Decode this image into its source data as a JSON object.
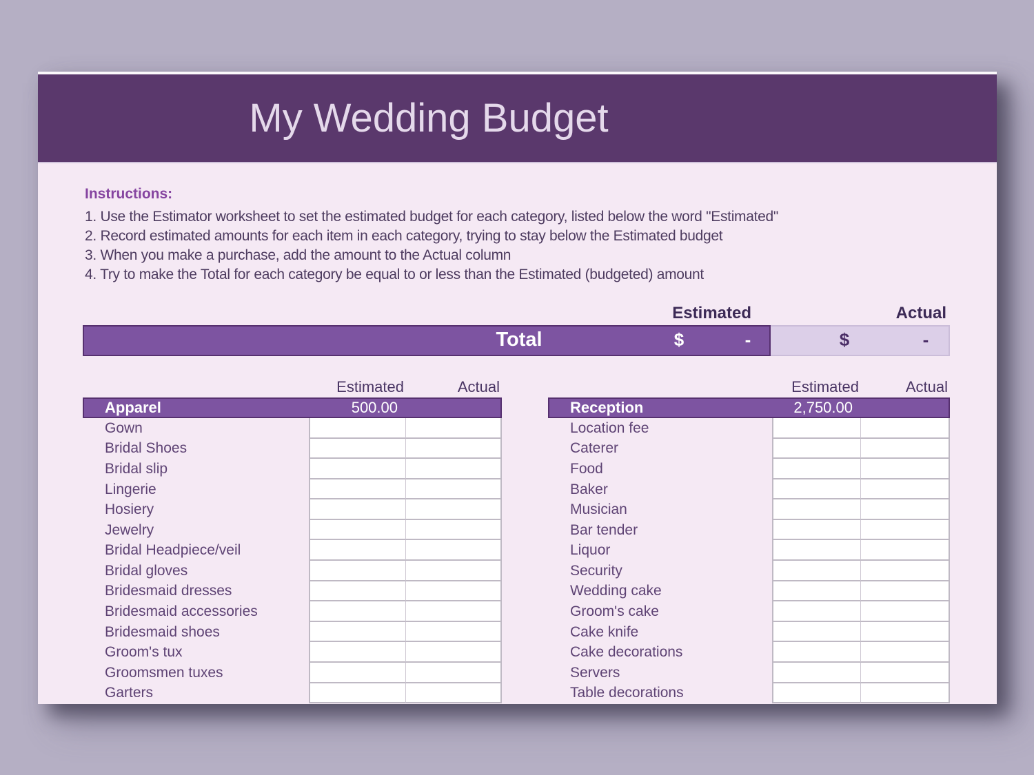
{
  "page": {
    "title": "My Wedding Budget",
    "instructions": {
      "heading": "Instructions:",
      "lines": [
        "1. Use the Estimator worksheet to set the estimated budget for each category, listed below the word \"Estimated\"",
        "2. Record estimated amounts for each item in each category, trying to stay below the Estimated budget",
        "3. When you make a purchase, add the amount to the Actual column",
        "4. Try to make the Total for each category be equal to or less than the Estimated (budgeted) amount"
      ]
    },
    "totals": {
      "estimated_header": "Estimated",
      "actual_header": "Actual",
      "total_label": "Total",
      "estimated_currency": "$",
      "estimated_value": "-",
      "actual_currency": "$",
      "actual_value": "-"
    },
    "tables": [
      {
        "estimated_header": "Estimated",
        "actual_header": "Actual",
        "category": "Apparel",
        "category_estimated": "500.00",
        "items": [
          "Gown",
          "Bridal Shoes",
          "Bridal slip",
          "Lingerie",
          "Hosiery",
          "Jewelry",
          "Bridal Headpiece/veil",
          "Bridal gloves",
          "Bridesmaid dresses",
          "Bridesmaid accessories",
          "Bridesmaid shoes",
          "Groom's tux",
          "Groomsmen tuxes",
          "Garters"
        ]
      },
      {
        "estimated_header": "Estimated",
        "actual_header": "Actual",
        "category": "Reception",
        "category_estimated": "2,750.00",
        "items": [
          "Location fee",
          "Caterer",
          "Food",
          "Baker",
          "Musician",
          "Bar tender",
          "Liquor",
          "Security",
          "Wedding cake",
          "Groom's cake",
          "Cake knife",
          "Cake decorations",
          "Servers",
          "Table decorations"
        ]
      }
    ],
    "colors": {
      "outer_background": "#b5afc4",
      "page_background": "#f5e9f4",
      "title_bar": "#5a386c",
      "accent_purple": "#7d54a1",
      "accent_border": "#56306f",
      "total_actual_band": "#dccfe8",
      "cell_border": "#bfb9c4",
      "item_text": "#5e4374",
      "header_text": "#3c2a56",
      "instructions_heading": "#8544a0"
    }
  }
}
